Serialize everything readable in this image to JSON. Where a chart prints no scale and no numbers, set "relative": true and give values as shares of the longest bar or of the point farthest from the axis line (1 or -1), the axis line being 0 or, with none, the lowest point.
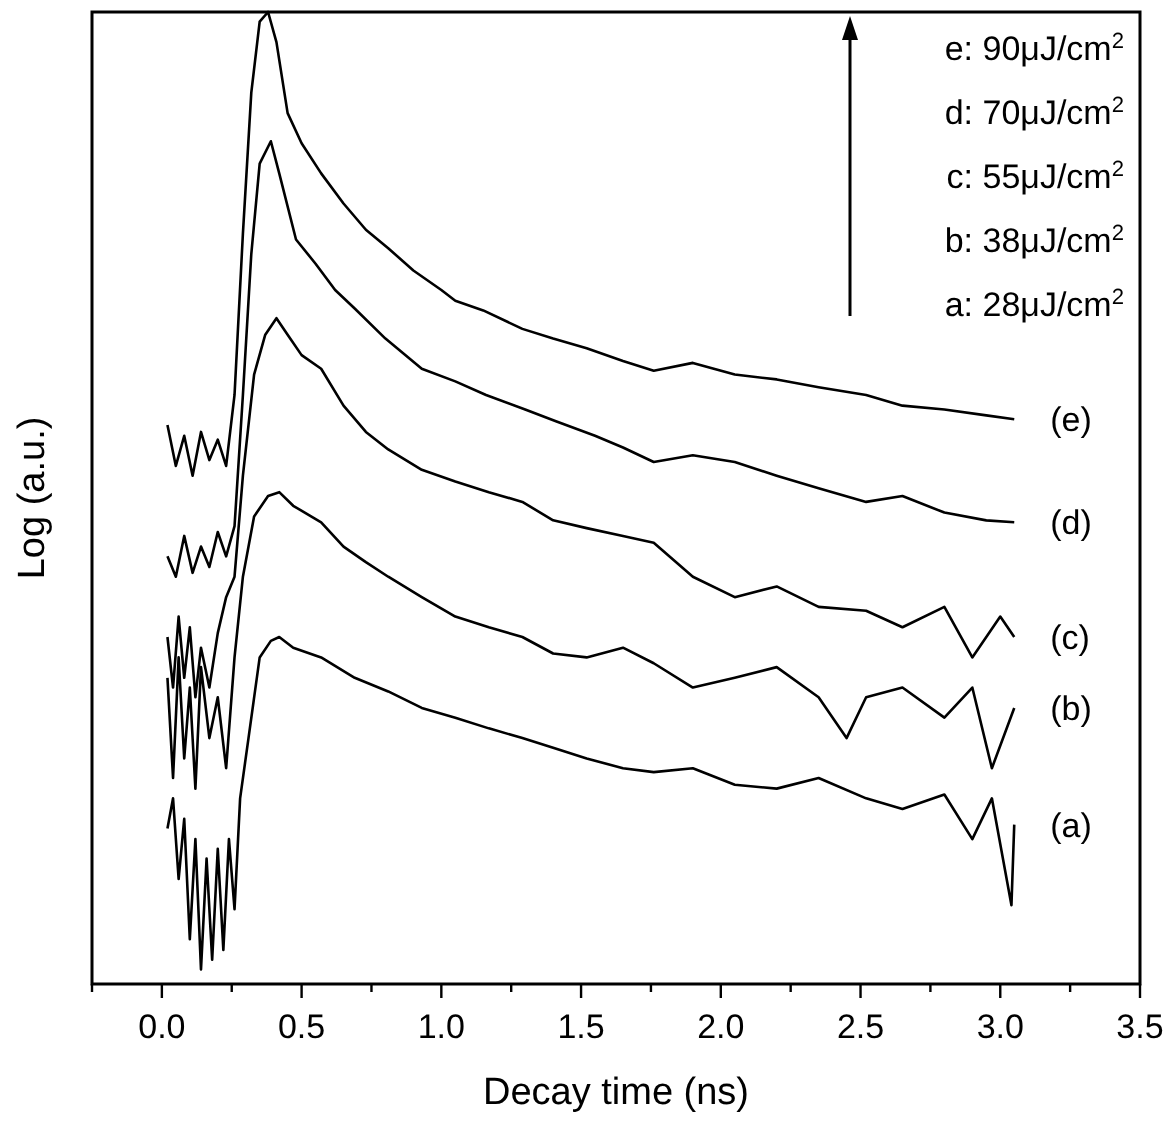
{
  "chart_data": {
    "type": "line",
    "xlabel": "Decay time (ns)",
    "ylabel": "Log (a.u.)",
    "relative": true,
    "grid": false,
    "marker": "none",
    "line_style": "solid",
    "xlim": [
      -0.25,
      3.5
    ],
    "xticks": [
      {
        "value": -0.25,
        "label": null
      },
      {
        "value": 0,
        "label": "0.0"
      },
      {
        "value": 0.25,
        "label": null
      },
      {
        "value": 0.5,
        "label": "0.5"
      },
      {
        "value": 0.75,
        "label": null
      },
      {
        "value": 1,
        "label": "1.0"
      },
      {
        "value": 1.25,
        "label": null
      },
      {
        "value": 1.5,
        "label": "1.5"
      },
      {
        "value": 1.75,
        "label": null
      },
      {
        "value": 2,
        "label": "2.0"
      },
      {
        "value": 2.25,
        "label": null
      },
      {
        "value": 2.5,
        "label": "2.5"
      },
      {
        "value": 2.75,
        "label": null
      },
      {
        "value": 3,
        "label": "3.0"
      },
      {
        "value": 3.25,
        "label": null
      },
      {
        "value": 3.5,
        "label": "3.5"
      }
    ],
    "annotations": [
      "e: 90μJ/cm$^{2}$",
      "d: 70μJ/cm$^{2}$",
      "c: 55μJ/cm$^{2}$",
      "b: 38μJ/cm$^{2}$",
      "a: 28μJ/cm$^{2}$"
    ],
    "series": [
      {
        "name": "(e)",
        "color": "#000000",
        "x": [
          0.02,
          0.05,
          0.08,
          0.11,
          0.14,
          0.17,
          0.2,
          0.23,
          0.26,
          0.29,
          0.32,
          0.35,
          0.38,
          0.41,
          0.45,
          0.5,
          0.57,
          0.65,
          0.73,
          0.81,
          0.9,
          1.0,
          1.05,
          1.15,
          1.29,
          1.4,
          1.52,
          1.65,
          1.76,
          1.9,
          2.05,
          2.2,
          2.35,
          2.52,
          2.65,
          2.8,
          2.95,
          3.05
        ],
        "values": [
          0.575,
          0.533,
          0.564,
          0.523,
          0.568,
          0.539,
          0.56,
          0.533,
          0.606,
          0.772,
          0.917,
          0.99,
          1.0,
          0.969,
          0.896,
          0.865,
          0.834,
          0.803,
          0.776,
          0.757,
          0.734,
          0.714,
          0.703,
          0.693,
          0.674,
          0.664,
          0.654,
          0.641,
          0.631,
          0.639,
          0.627,
          0.622,
          0.614,
          0.606,
          0.595,
          0.591,
          0.585,
          0.581
        ]
      },
      {
        "name": "(d)",
        "color": "#000000",
        "x": [
          0.02,
          0.05,
          0.08,
          0.11,
          0.14,
          0.17,
          0.2,
          0.23,
          0.26,
          0.29,
          0.32,
          0.35,
          0.39,
          0.42,
          0.48,
          0.55,
          0.62,
          0.69,
          0.8,
          0.93,
          1.05,
          1.16,
          1.3,
          1.41,
          1.55,
          1.65,
          1.76,
          1.9,
          2.05,
          2.2,
          2.35,
          2.52,
          2.65,
          2.8,
          2.95,
          3.05
        ],
        "values": [
          0.44,
          0.419,
          0.461,
          0.423,
          0.45,
          0.429,
          0.465,
          0.44,
          0.471,
          0.606,
          0.751,
          0.844,
          0.867,
          0.834,
          0.766,
          0.741,
          0.714,
          0.695,
          0.664,
          0.633,
          0.62,
          0.606,
          0.591,
          0.579,
          0.564,
          0.552,
          0.537,
          0.544,
          0.537,
          0.523,
          0.51,
          0.496,
          0.502,
          0.485,
          0.477,
          0.475
        ]
      },
      {
        "name": "(c)",
        "color": "#000000",
        "x": [
          0.02,
          0.04,
          0.06,
          0.08,
          0.1,
          0.12,
          0.14,
          0.17,
          0.2,
          0.23,
          0.26,
          0.29,
          0.33,
          0.37,
          0.41,
          0.45,
          0.5,
          0.57,
          0.65,
          0.73,
          0.81,
          0.93,
          1.05,
          1.17,
          1.29,
          1.4,
          1.52,
          1.65,
          1.76,
          1.9,
          2.05,
          2.2,
          2.35,
          2.52,
          2.65,
          2.8,
          2.9,
          3.0,
          3.05
        ],
        "values": [
          0.357,
          0.305,
          0.378,
          0.315,
          0.367,
          0.295,
          0.346,
          0.305,
          0.361,
          0.398,
          0.419,
          0.523,
          0.627,
          0.668,
          0.685,
          0.668,
          0.647,
          0.633,
          0.595,
          0.568,
          0.55,
          0.529,
          0.517,
          0.506,
          0.496,
          0.477,
          0.469,
          0.461,
          0.454,
          0.419,
          0.398,
          0.409,
          0.388,
          0.384,
          0.367,
          0.388,
          0.336,
          0.378,
          0.357
        ]
      },
      {
        "name": "(b)",
        "color": "#000000",
        "x": [
          0.02,
          0.04,
          0.06,
          0.08,
          0.1,
          0.12,
          0.14,
          0.17,
          0.2,
          0.23,
          0.26,
          0.29,
          0.33,
          0.38,
          0.42,
          0.47,
          0.57,
          0.65,
          0.73,
          0.81,
          0.93,
          1.05,
          1.17,
          1.29,
          1.4,
          1.52,
          1.65,
          1.76,
          1.9,
          2.05,
          2.2,
          2.35,
          2.45,
          2.52,
          2.65,
          2.8,
          2.9,
          2.97,
          3.05
        ],
        "values": [
          0.315,
          0.212,
          0.336,
          0.232,
          0.305,
          0.201,
          0.326,
          0.253,
          0.295,
          0.222,
          0.336,
          0.419,
          0.481,
          0.502,
          0.506,
          0.492,
          0.475,
          0.45,
          0.434,
          0.419,
          0.398,
          0.378,
          0.367,
          0.357,
          0.34,
          0.336,
          0.346,
          0.33,
          0.305,
          0.315,
          0.326,
          0.295,
          0.253,
          0.295,
          0.305,
          0.274,
          0.305,
          0.222,
          0.284
        ]
      },
      {
        "name": "(a)",
        "color": "#000000",
        "x": [
          0.02,
          0.04,
          0.06,
          0.08,
          0.1,
          0.12,
          0.14,
          0.16,
          0.18,
          0.2,
          0.22,
          0.24,
          0.26,
          0.28,
          0.31,
          0.35,
          0.39,
          0.42,
          0.47,
          0.57,
          0.69,
          0.81,
          0.93,
          1.05,
          1.17,
          1.29,
          1.4,
          1.52,
          1.65,
          1.76,
          1.9,
          2.05,
          2.2,
          2.35,
          2.52,
          2.65,
          2.8,
          2.9,
          2.97,
          3.04,
          3.05
        ],
        "values": [
          0.16,
          0.191,
          0.108,
          0.17,
          0.046,
          0.149,
          0.015,
          0.129,
          0.025,
          0.139,
          0.035,
          0.149,
          0.077,
          0.191,
          0.253,
          0.336,
          0.353,
          0.357,
          0.346,
          0.336,
          0.315,
          0.301,
          0.284,
          0.274,
          0.263,
          0.253,
          0.243,
          0.232,
          0.222,
          0.218,
          0.222,
          0.205,
          0.201,
          0.212,
          0.191,
          0.18,
          0.195,
          0.149,
          0.191,
          0.081,
          0.164
        ]
      }
    ]
  }
}
